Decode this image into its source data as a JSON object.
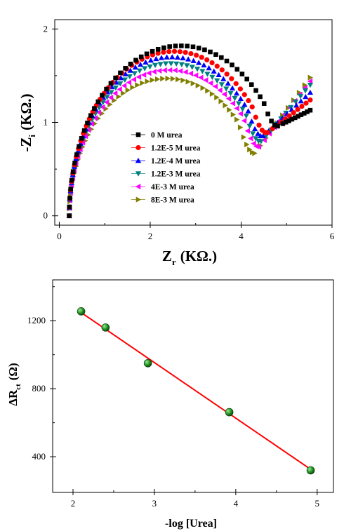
{
  "chart_data": [
    {
      "type": "scatter",
      "subtype": "nyquist",
      "title": "",
      "xlabel_main": "Z",
      "xlabel_sub": "r",
      "xlabel_unit": "(KΩ.)",
      "ylabel_main": "-Z",
      "ylabel_sub": "i",
      "ylabel_unit": "(KΩ.)",
      "xlim": [
        -0.1,
        6
      ],
      "ylim": [
        -0.1,
        2.1
      ],
      "xticks": [
        "0",
        "2",
        "4",
        "6"
      ],
      "yticks": [
        "0",
        "1",
        "2"
      ],
      "xtick_values": [
        0,
        2,
        4,
        6
      ],
      "ytick_values": [
        0,
        1,
        2
      ],
      "grid": false,
      "legend_position": "center-left",
      "series": [
        {
          "name": "0 M urea",
          "color": "#000000",
          "marker": "square",
          "R": 4.9,
          "peak": 1.82,
          "xmin": 4.85,
          "ymin": 0.97,
          "xend": 5.52,
          "yend": 1.13
        },
        {
          "name": "1.2E-5 M urea",
          "color": "#ff0000",
          "marker": "circle",
          "R": 4.6,
          "peak": 1.76,
          "xmin": 4.6,
          "ymin": 0.9,
          "xend": 5.52,
          "yend": 1.24
        },
        {
          "name": "1.2E-4 M urea",
          "color": "#0000ff",
          "marker": "triangle-up",
          "R": 4.5,
          "peak": 1.7,
          "xmin": 4.5,
          "ymin": 0.86,
          "xend": 5.52,
          "yend": 1.32
        },
        {
          "name": "1.2E-3 M urea",
          "color": "#008080",
          "marker": "triangle-down",
          "R": 4.45,
          "peak": 1.63,
          "xmin": 4.45,
          "ymin": 0.8,
          "xend": 5.52,
          "yend": 1.4
        },
        {
          "name": "4E-3 M urea",
          "color": "#ff00ff",
          "marker": "triangle-left",
          "R": 4.4,
          "peak": 1.56,
          "xmin": 4.4,
          "ymin": 0.74,
          "xend": 5.52,
          "yend": 1.44
        },
        {
          "name": "8E-3 M urea",
          "color": "#808000",
          "marker": "triangle-right",
          "R": 4.3,
          "peak": 1.47,
          "xmin": 4.3,
          "ymin": 0.67,
          "xend": 5.52,
          "yend": 1.48
        }
      ]
    },
    {
      "type": "scatter",
      "title": "",
      "xlabel": "-log [Urea]",
      "ylabel_main": "ΔR",
      "ylabel_sub": "ct",
      "ylabel_unit": "(Ω)",
      "xlim": [
        1.75,
        5.2
      ],
      "ylim": [
        190,
        1440
      ],
      "xticks": [
        "2",
        "3",
        "4",
        "5"
      ],
      "yticks": [
        "400",
        "800",
        "1200"
      ],
      "xtick_values": [
        2,
        3,
        4,
        5
      ],
      "ytick_values": [
        400,
        800,
        1200
      ],
      "grid": false,
      "points": [
        {
          "x": 2.1,
          "y": 1255
        },
        {
          "x": 2.4,
          "y": 1160
        },
        {
          "x": 2.92,
          "y": 950
        },
        {
          "x": 3.92,
          "y": 662
        },
        {
          "x": 4.92,
          "y": 320
        }
      ],
      "fit_line": {
        "x": [
          2.1,
          4.92
        ],
        "y": [
          1248,
          326
        ],
        "color": "#ff0000"
      },
      "marker_color": "#1e8c1e"
    }
  ]
}
